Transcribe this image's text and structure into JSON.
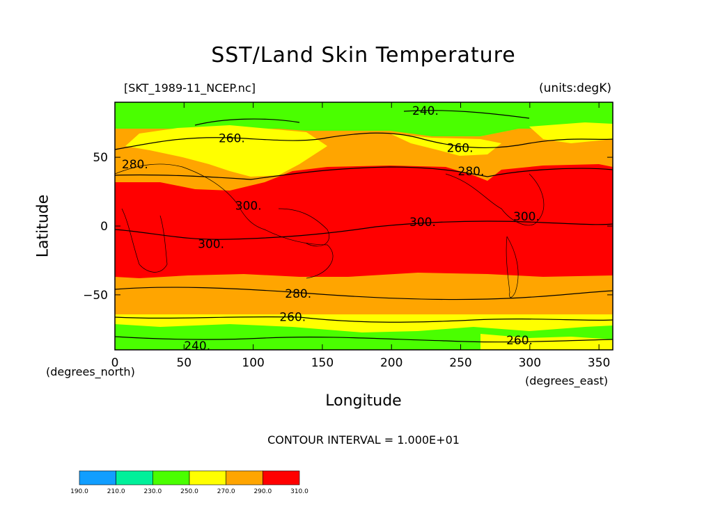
{
  "title": "SST/Land Skin Temperature",
  "file_label": "[SKT_1989-11_NCEP.nc]",
  "units_label": "(units:degK)",
  "x_unit_note": "(degrees_north)",
  "xunits_east": "(degrees_east)",
  "xlabel": "Longitude",
  "ylabel": "Latitude",
  "contour_interval_text": "CONTOUR INTERVAL = 1.000E+01",
  "chart_data": {
    "type": "heatmap",
    "title": "SST/Land Skin Temperature",
    "xlabel": "Longitude",
    "ylabel": "Latitude",
    "units": "degK",
    "xlim": [
      0,
      360
    ],
    "ylim": [
      -90,
      90
    ],
    "x_ticks": [
      0,
      50,
      100,
      150,
      200,
      250,
      300,
      350
    ],
    "y_ticks": [
      50,
      0,
      -50
    ],
    "y_tick_labels": [
      "50",
      "0",
      "−50"
    ],
    "contour_interval": 10,
    "contour_labels": [
      {
        "text": "240.",
        "lon": 215,
        "lat": 84
      },
      {
        "text": "260.",
        "lon": 75,
        "lat": 64
      },
      {
        "text": "260.",
        "lon": 240,
        "lat": 57
      },
      {
        "text": "280.",
        "lon": 5,
        "lat": 45
      },
      {
        "text": "280.",
        "lon": 248,
        "lat": 40
      },
      {
        "text": "300.",
        "lon": 87,
        "lat": 15
      },
      {
        "text": "300.",
        "lon": 213,
        "lat": 3
      },
      {
        "text": "300.",
        "lon": 288,
        "lat": 7
      },
      {
        "text": "300.",
        "lon": 60,
        "lat": -13
      },
      {
        "text": "280.",
        "lon": 123,
        "lat": -49
      },
      {
        "text": "260.",
        "lon": 119,
        "lat": -66
      },
      {
        "text": "260.",
        "lon": 283,
        "lat": -83
      },
      {
        "text": "240.",
        "lon": 50,
        "lat": -87
      }
    ],
    "colorbar": {
      "levels": [
        190.0,
        210.0,
        230.0,
        250.0,
        270.0,
        290.0,
        310.0
      ],
      "labels": [
        "190.0",
        "210.0",
        "230.0",
        "250.0",
        "270.0",
        "290.0",
        "310.0"
      ],
      "colors": [
        "#119eff",
        "#00f09a",
        "#4aff00",
        "#ffff00",
        "#ffa500",
        "#ff0000"
      ]
    }
  }
}
